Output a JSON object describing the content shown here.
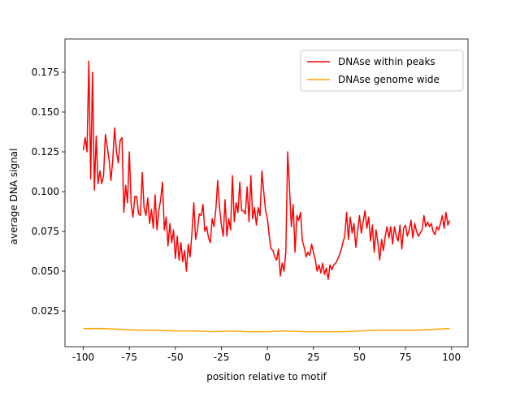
{
  "chart_data": {
    "type": "line",
    "xlabel": "position relative to motif",
    "ylabel": "average DNA signal",
    "legend": "upper right",
    "xlim": [
      -109.95,
      108.95
    ],
    "ylim": [
      0.0026,
      0.1959
    ],
    "xticks": [
      -100,
      -75,
      -50,
      -25,
      0,
      25,
      50,
      75,
      100
    ],
    "yticks": [
      0.025,
      {
        "value": 0.05,
        "label": "0.050"
      },
      0.075,
      {
        "value": 0.1,
        "label": "0.100"
      },
      0.125,
      {
        "value": 0.15,
        "label": "0.150"
      },
      0.175
    ],
    "series": [
      {
        "name": "DNAse within peaks",
        "color": "#ff0000",
        "x": [
          -100,
          -99,
          -98,
          -97,
          -96,
          -95,
          -94,
          -93,
          -92,
          -91,
          -90,
          -89,
          -88,
          -87,
          -86,
          -85,
          -84,
          -83,
          -82,
          -81,
          -80,
          -79,
          -78,
          -77,
          -76,
          -75,
          -74,
          -73,
          -72,
          -71,
          -70,
          -69,
          -68,
          -67,
          -66,
          -65,
          -64,
          -63,
          -62,
          -61,
          -60,
          -59,
          -58,
          -57,
          -56,
          -55,
          -54,
          -53,
          -52,
          -51,
          -50,
          -49,
          -48,
          -47,
          -46,
          -45,
          -44,
          -43,
          -42,
          -41,
          -40,
          -39,
          -38,
          -37,
          -36,
          -35,
          -34,
          -33,
          -32,
          -31,
          -30,
          -29,
          -28,
          -27,
          -26,
          -25,
          -24,
          -23,
          -22,
          -21,
          -20,
          -19,
          -18,
          -17,
          -16,
          -15,
          -14,
          -13,
          -12,
          -11,
          -10,
          -9,
          -8,
          -7,
          -6,
          -5,
          -4,
          -3,
          -2,
          -1,
          0,
          1,
          2,
          3,
          4,
          5,
          6,
          7,
          8,
          9,
          10,
          11,
          12,
          13,
          14,
          15,
          16,
          17,
          18,
          19,
          20,
          21,
          22,
          23,
          24,
          25,
          26,
          27,
          28,
          29,
          30,
          31,
          32,
          33,
          34,
          35,
          36,
          37,
          38,
          39,
          40,
          41,
          42,
          43,
          44,
          45,
          46,
          47,
          48,
          49,
          50,
          51,
          52,
          53,
          54,
          55,
          56,
          57,
          58,
          59,
          60,
          61,
          62,
          63,
          64,
          65,
          66,
          67,
          68,
          69,
          70,
          71,
          72,
          73,
          74,
          75,
          76,
          77,
          78,
          79,
          80,
          81,
          82,
          83,
          84,
          85,
          86,
          87,
          88,
          89,
          90,
          91,
          92,
          93,
          94,
          95,
          96,
          97,
          98,
          99
        ],
        "values": [
          0.126,
          0.134,
          0.125,
          0.182,
          0.108,
          0.175,
          0.101,
          0.135,
          0.105,
          0.113,
          0.105,
          0.11,
          0.136,
          0.128,
          0.12,
          0.107,
          0.12,
          0.14,
          0.125,
          0.118,
          0.132,
          0.134,
          0.087,
          0.104,
          0.093,
          0.125,
          0.092,
          0.084,
          0.097,
          0.097,
          0.086,
          0.085,
          0.112,
          0.09,
          0.085,
          0.096,
          0.08,
          0.089,
          0.077,
          0.098,
          0.076,
          0.088,
          0.095,
          0.106,
          0.076,
          0.084,
          0.066,
          0.08,
          0.068,
          0.076,
          0.058,
          0.072,
          0.057,
          0.068,
          0.056,
          0.063,
          0.05,
          0.067,
          0.059,
          0.074,
          0.093,
          0.07,
          0.076,
          0.086,
          0.085,
          0.092,
          0.075,
          0.078,
          0.071,
          0.068,
          0.083,
          0.078,
          0.089,
          0.107,
          0.09,
          0.079,
          0.072,
          0.095,
          0.072,
          0.083,
          0.076,
          0.11,
          0.081,
          0.093,
          0.087,
          0.106,
          0.088,
          0.088,
          0.086,
          0.103,
          0.081,
          0.11,
          0.083,
          0.09,
          0.079,
          0.09,
          0.085,
          0.113,
          0.1,
          0.088,
          0.083,
          0.072,
          0.064,
          0.063,
          0.059,
          0.057,
          0.064,
          0.047,
          0.055,
          0.05,
          0.062,
          0.125,
          0.102,
          0.078,
          0.092,
          0.062,
          0.085,
          0.082,
          0.087,
          0.069,
          0.065,
          0.059,
          0.062,
          0.06,
          0.067,
          0.062,
          0.057,
          0.05,
          0.054,
          0.049,
          0.055,
          0.048,
          0.052,
          0.045,
          0.054,
          0.051,
          0.054,
          0.055,
          0.057,
          0.06,
          0.063,
          0.068,
          0.072,
          0.087,
          0.07,
          0.084,
          0.074,
          0.08,
          0.065,
          0.075,
          0.085,
          0.074,
          0.081,
          0.088,
          0.077,
          0.084,
          0.069,
          0.079,
          0.062,
          0.076,
          0.068,
          0.057,
          0.07,
          0.063,
          0.072,
          0.078,
          0.071,
          0.078,
          0.067,
          0.078,
          0.072,
          0.069,
          0.079,
          0.064,
          0.077,
          0.079,
          0.072,
          0.076,
          0.082,
          0.071,
          0.08,
          0.075,
          0.072,
          0.074,
          0.076,
          0.085,
          0.078,
          0.081,
          0.078,
          0.08,
          0.075,
          0.073,
          0.078,
          0.076,
          0.08,
          0.085,
          0.077,
          0.087,
          0.079,
          0.082
        ]
      },
      {
        "name": "DNAse genome wide",
        "color": "#ffa500",
        "x": [
          -100,
          -90,
          -80,
          -70,
          -60,
          -50,
          -40,
          -30,
          -20,
          -10,
          0,
          10,
          20,
          30,
          40,
          50,
          60,
          70,
          80,
          90,
          99
        ],
        "values": [
          0.014,
          0.014,
          0.0135,
          0.013,
          0.013,
          0.0125,
          0.0125,
          0.012,
          0.0125,
          0.012,
          0.012,
          0.0125,
          0.012,
          0.012,
          0.012,
          0.0125,
          0.013,
          0.013,
          0.013,
          0.0135,
          0.014
        ]
      }
    ]
  }
}
